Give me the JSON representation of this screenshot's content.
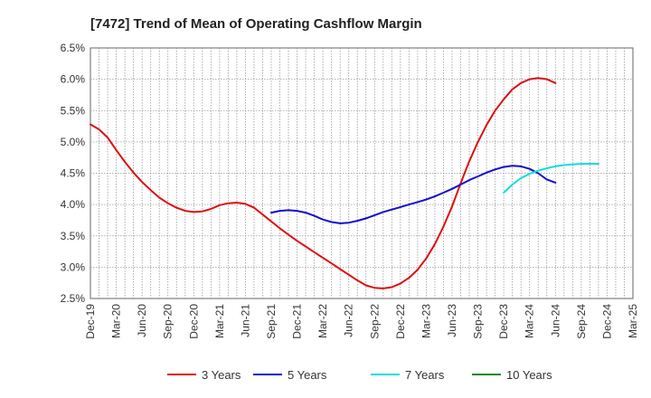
{
  "chart_data": {
    "type": "line",
    "title": "[7472]  Trend of Mean of Operating Cashflow Margin",
    "xlabel": "",
    "ylabel": "",
    "ylim": [
      2.5,
      6.5
    ],
    "y_ticks": [
      "6.5%",
      "6.0%",
      "5.5%",
      "5.0%",
      "4.5%",
      "4.0%",
      "3.5%",
      "3.0%",
      "2.5%"
    ],
    "y_tick_values": [
      6.5,
      6.0,
      5.5,
      5.0,
      4.5,
      4.0,
      3.5,
      3.0,
      2.5
    ],
    "x_ticks": [
      "Dec-19",
      "Mar-20",
      "Jun-20",
      "Sep-20",
      "Dec-20",
      "Mar-21",
      "Jun-21",
      "Sep-21",
      "Dec-21",
      "Mar-22",
      "Jun-22",
      "Sep-22",
      "Dec-22",
      "Mar-23",
      "Jun-23",
      "Sep-23",
      "Dec-23",
      "Mar-24",
      "Jun-24",
      "Sep-24",
      "Dec-24",
      "Mar-25"
    ],
    "x_index_range": [
      0,
      63
    ],
    "grid": true,
    "legend_position": "bottom",
    "series": [
      {
        "name": "3 Years",
        "color": "#dd1111",
        "x_start_index": 0,
        "values": [
          5.28,
          5.2,
          5.07,
          4.87,
          4.68,
          4.51,
          4.36,
          4.23,
          4.11,
          4.02,
          3.95,
          3.9,
          3.88,
          3.89,
          3.93,
          3.99,
          4.02,
          4.03,
          4.01,
          3.95,
          3.84,
          3.73,
          3.62,
          3.52,
          3.42,
          3.33,
          3.24,
          3.15,
          3.06,
          2.97,
          2.88,
          2.79,
          2.71,
          2.67,
          2.66,
          2.68,
          2.74,
          2.83,
          2.96,
          3.14,
          3.37,
          3.65,
          3.97,
          4.34,
          4.69,
          5.0,
          5.27,
          5.5,
          5.68,
          5.84,
          5.94,
          6.0,
          6.02,
          6.0,
          5.94
        ]
      },
      {
        "name": "5 Years",
        "color": "#1111cc",
        "x_start_index": 21,
        "values": [
          3.87,
          3.9,
          3.91,
          3.9,
          3.87,
          3.82,
          3.76,
          3.72,
          3.7,
          3.71,
          3.74,
          3.78,
          3.83,
          3.88,
          3.92,
          3.96,
          4.0,
          4.04,
          4.08,
          4.13,
          4.19,
          4.25,
          4.32,
          4.39,
          4.45,
          4.51,
          4.56,
          4.6,
          4.62,
          4.61,
          4.57,
          4.5,
          4.4,
          4.35
        ]
      },
      {
        "name": "7 Years",
        "color": "#11dddd",
        "x_start_index": 48,
        "values": [
          4.19,
          4.32,
          4.42,
          4.49,
          4.54,
          4.58,
          4.61,
          4.63,
          4.64,
          4.65,
          4.65,
          4.65
        ]
      },
      {
        "name": "10 Years",
        "color": "#228822",
        "x_start_index": null,
        "values": []
      }
    ]
  }
}
